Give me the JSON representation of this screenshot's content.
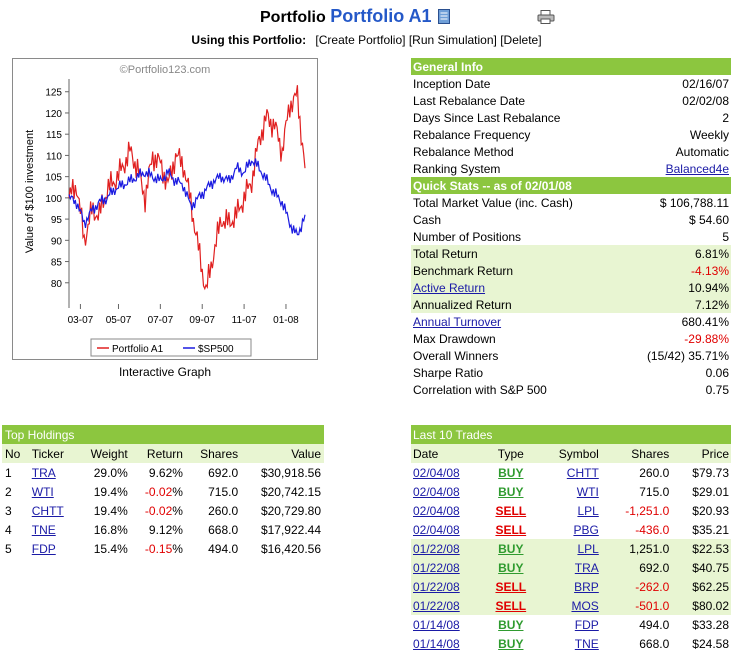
{
  "header": {
    "title_prefix": "Portfolio",
    "portfolio_name": "Portfolio A1",
    "doc_icon": "document-icon",
    "print_icon": "print-icon"
  },
  "using": {
    "label": "Using this Portfolio:",
    "actions": [
      "[Create Portfolio]",
      "[Run Simulation]",
      "[Delete]"
    ]
  },
  "graph": {
    "caption": "Interactive Graph",
    "watermark": "©Portfolio123.com"
  },
  "chart_data": {
    "type": "line",
    "ylabel": "Value of $100 investment",
    "xlabel": "",
    "ylim": [
      75,
      128
    ],
    "yticks": [
      80,
      85,
      90,
      95,
      100,
      105,
      110,
      115,
      120,
      125
    ],
    "xticks": [
      "03-07",
      "05-07",
      "07-07",
      "09-07",
      "11-07",
      "01-08"
    ],
    "legend": "bottom",
    "series": [
      {
        "name": "Portfolio A1",
        "color": "#e02020",
        "x": [
          0,
          2,
          4,
          6,
          8,
          10,
          12,
          14,
          16,
          18,
          20,
          22,
          24,
          26,
          28,
          30,
          32,
          34,
          36,
          38,
          40,
          42,
          44,
          46,
          48,
          50,
          52,
          54,
          56,
          58,
          60,
          62
        ],
        "y": [
          100,
          103,
          90,
          97,
          96,
          102,
          104,
          107,
          111,
          107,
          100,
          110,
          108,
          103,
          110,
          108,
          99,
          88,
          78,
          87,
          95,
          94,
          96,
          100,
          104,
          114,
          119,
          117,
          111,
          122,
          124,
          107
        ]
      },
      {
        "name": "$SP500",
        "color": "#1a1ae0",
        "x": [
          0,
          2,
          4,
          6,
          8,
          10,
          12,
          14,
          16,
          18,
          20,
          22,
          24,
          26,
          28,
          30,
          32,
          34,
          36,
          38,
          40,
          42,
          44,
          46,
          48,
          50,
          52,
          54,
          56,
          58,
          60,
          62
        ],
        "y": [
          100,
          99,
          94,
          97,
          99,
          100,
          102,
          103,
          104,
          105,
          106,
          105,
          104,
          106,
          104,
          103,
          98,
          100,
          102,
          104,
          105,
          104,
          107,
          106,
          109,
          107,
          104,
          101,
          99,
          94,
          91,
          96
        ]
      }
    ]
  },
  "general_info": {
    "heading": "General Info",
    "rows": [
      {
        "label": "Inception Date",
        "value": "02/16/07"
      },
      {
        "label": "Last Rebalance Date",
        "value": "02/02/08"
      },
      {
        "label": "Days Since Last Rebalance",
        "value": "2"
      },
      {
        "label": "Rebalance Frequency",
        "value": "Weekly"
      },
      {
        "label": "Rebalance Method",
        "value": "Automatic"
      },
      {
        "label": "Ranking System",
        "value": "Balanced4e"
      }
    ]
  },
  "quick_stats": {
    "heading": "Quick Stats -- as of 02/01/08",
    "rows": [
      {
        "label": "Total Market Value (inc. Cash)",
        "value": "$ 106,788.11"
      },
      {
        "label": "Cash",
        "value": "$ 54.60"
      },
      {
        "label": "Number of Positions",
        "value": "5"
      },
      {
        "label": "Total Return",
        "value": "6.81%"
      },
      {
        "label": "Benchmark Return",
        "value": "-4.13%"
      },
      {
        "label": "Active Return",
        "value": "10.94%"
      },
      {
        "label": "Annualized Return",
        "value": "7.12%"
      },
      {
        "label": "Annual Turnover",
        "value": "680.41%"
      },
      {
        "label": "Max Drawdown",
        "value": "-29.88%"
      },
      {
        "label": "Overall Winners",
        "value": "(15/42) 35.71%"
      },
      {
        "label": "Sharpe Ratio",
        "value": "0.06"
      },
      {
        "label": "Correlation with S&P 500",
        "value": "0.75"
      }
    ]
  },
  "holdings": {
    "heading": "Top Holdings",
    "columns": [
      "No",
      "Ticker",
      "Weight",
      "Return",
      "Shares",
      "Value"
    ],
    "rows": [
      {
        "no": "1",
        "ticker": "TRA",
        "weight": "29.0%",
        "ret": "9.62",
        "shares": "692.0",
        "value": "$30,918.56"
      },
      {
        "no": "2",
        "ticker": "WTI",
        "weight": "19.4%",
        "ret": "-0.02",
        "shares": "715.0",
        "value": "$20,742.15"
      },
      {
        "no": "3",
        "ticker": "CHTT",
        "weight": "19.4%",
        "ret": "-0.02",
        "shares": "260.0",
        "value": "$20,729.80"
      },
      {
        "no": "4",
        "ticker": "TNE",
        "weight": "16.8%",
        "ret": "9.12",
        "shares": "668.0",
        "value": "$17,922.44"
      },
      {
        "no": "5",
        "ticker": "FDP",
        "weight": "15.4%",
        "ret": "-0.15",
        "shares": "494.0",
        "value": "$16,420.56"
      }
    ]
  },
  "trades": {
    "heading": "Last 10 Trades",
    "columns": [
      "Date",
      "Type",
      "Symbol",
      "Shares",
      "Price"
    ],
    "rows": [
      {
        "date": "02/04/08",
        "type": "BUY",
        "symbol": "CHTT",
        "shares": "260.0",
        "price": "$79.73"
      },
      {
        "date": "02/04/08",
        "type": "BUY",
        "symbol": "WTI",
        "shares": "715.0",
        "price": "$29.01"
      },
      {
        "date": "02/04/08",
        "type": "SELL",
        "symbol": "LPL",
        "shares": "-1,251.0",
        "price": "$20.93"
      },
      {
        "date": "02/04/08",
        "type": "SELL",
        "symbol": "PBG",
        "shares": "-436.0",
        "price": "$35.21"
      },
      {
        "date": "01/22/08",
        "type": "BUY",
        "symbol": "LPL",
        "shares": "1,251.0",
        "price": "$22.53"
      },
      {
        "date": "01/22/08",
        "type": "BUY",
        "symbol": "TRA",
        "shares": "692.0",
        "price": "$40.75"
      },
      {
        "date": "01/22/08",
        "type": "SELL",
        "symbol": "BRP",
        "shares": "-262.0",
        "price": "$62.25"
      },
      {
        "date": "01/22/08",
        "type": "SELL",
        "symbol": "MOS",
        "shares": "-501.0",
        "price": "$80.02"
      },
      {
        "date": "01/14/08",
        "type": "BUY",
        "symbol": "FDP",
        "shares": "494.0",
        "price": "$33.28"
      },
      {
        "date": "01/14/08",
        "type": "BUY",
        "symbol": "TNE",
        "shares": "668.0",
        "price": "$24.58"
      }
    ]
  }
}
